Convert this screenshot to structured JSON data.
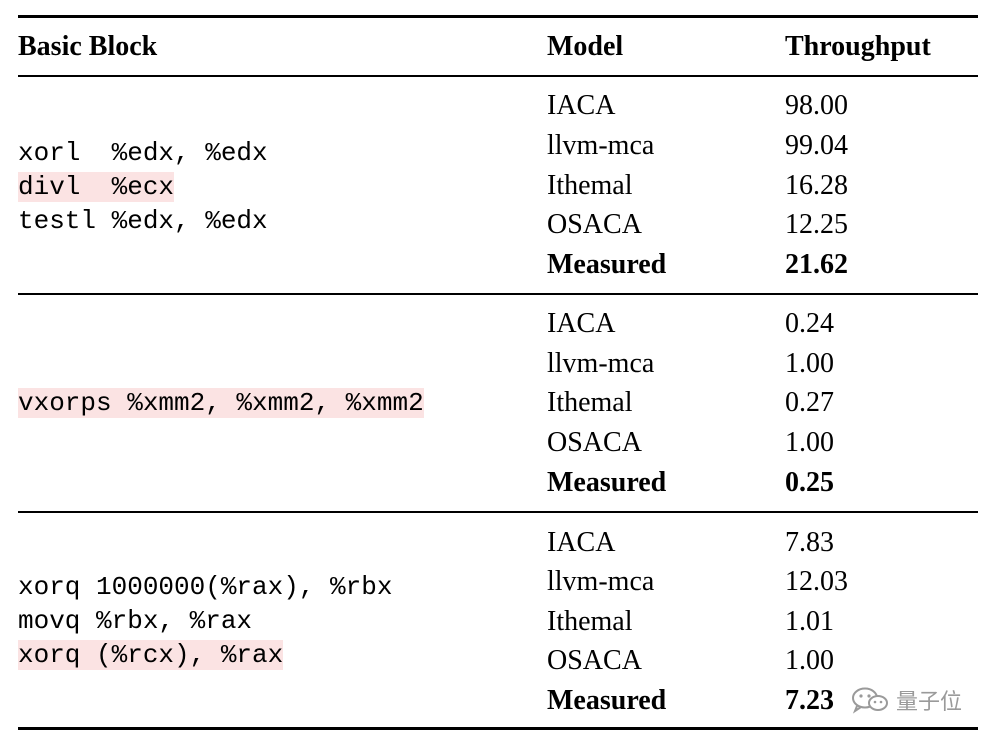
{
  "table": {
    "headers": {
      "basic_block": "Basic Block",
      "model": "Model",
      "throughput": "Throughput"
    },
    "groups": [
      {
        "code": [
          {
            "text": "xorl  %edx, %edx",
            "highlight": false
          },
          {
            "text": "divl  %ecx",
            "highlight": true
          },
          {
            "text": "testl %edx, %edx",
            "highlight": false
          }
        ],
        "rows": [
          {
            "model": "IACA",
            "value": "98.00"
          },
          {
            "model": "llvm-mca",
            "value": "99.04"
          },
          {
            "model": "Ithemal",
            "value": "16.28"
          },
          {
            "model": "OSACA",
            "value": "12.25"
          },
          {
            "model": "Measured",
            "value": "21.62",
            "bold": true
          }
        ]
      },
      {
        "code": [
          {
            "text": "vxorps %xmm2, %xmm2, %xmm2",
            "highlight": true
          }
        ],
        "rows": [
          {
            "model": "IACA",
            "value": "0.24"
          },
          {
            "model": "llvm-mca",
            "value": "1.00"
          },
          {
            "model": "Ithemal",
            "value": "0.27"
          },
          {
            "model": "OSACA",
            "value": "1.00"
          },
          {
            "model": "Measured",
            "value": "0.25",
            "bold": true
          }
        ]
      },
      {
        "code": [
          {
            "text": "xorq 1000000(%rax), %rbx",
            "highlight": false
          },
          {
            "text": "movq %rbx, %rax",
            "highlight": false
          },
          {
            "text": "xorq (%rcx), %rax",
            "highlight": true
          }
        ],
        "rows": [
          {
            "model": "IACA",
            "value": "7.83"
          },
          {
            "model": "llvm-mca",
            "value": "12.03"
          },
          {
            "model": "Ithemal",
            "value": "1.01"
          },
          {
            "model": "OSACA",
            "value": "1.00"
          },
          {
            "model": "Measured",
            "value": "7.23",
            "bold": true
          }
        ]
      }
    ],
    "highlight_color": "#fbe3e3"
  },
  "watermark": {
    "text": "量子位",
    "icon": "wechat-icon"
  }
}
